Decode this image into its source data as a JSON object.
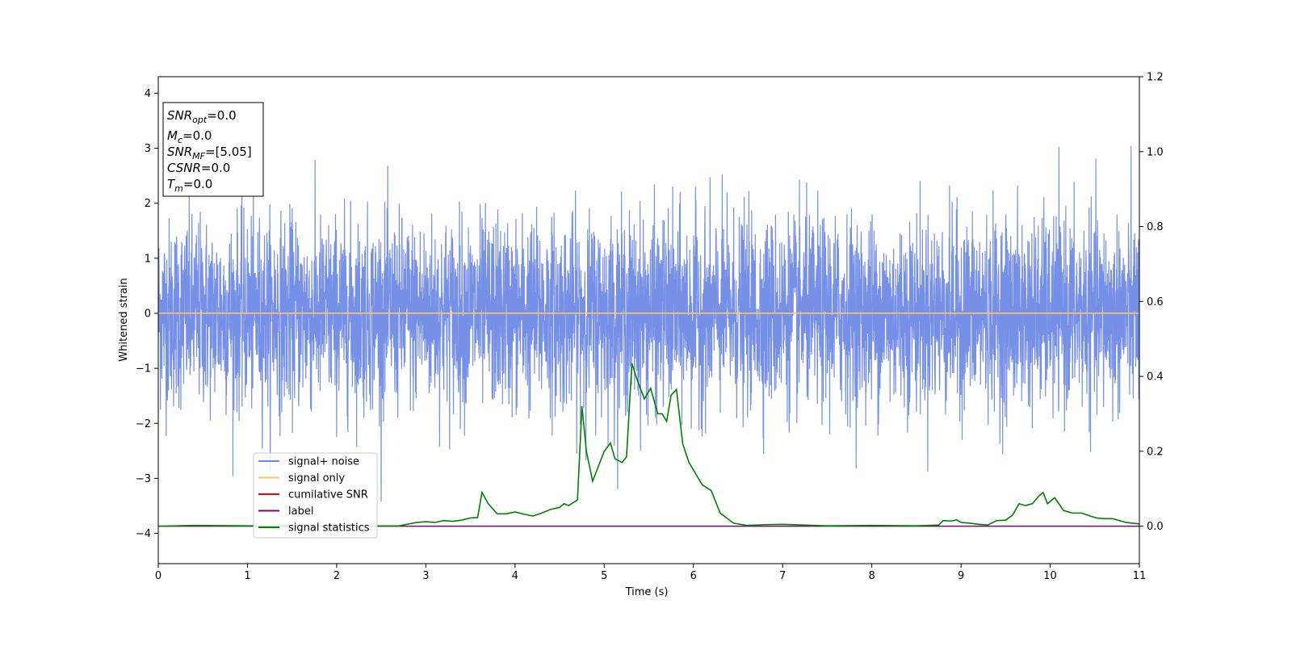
{
  "chart_data": {
    "type": "line",
    "xlabel": "Time (s)",
    "ylabel": "Whitened strain",
    "xlim": [
      0,
      11
    ],
    "ylim_left": [
      -4.55,
      4.3
    ],
    "ylim_right": [
      -0.1,
      1.2
    ],
    "x_ticks": [
      0,
      1,
      2,
      3,
      4,
      5,
      6,
      7,
      8,
      9,
      10,
      11
    ],
    "y_ticks_left": [
      -4,
      -3,
      -2,
      -1,
      0,
      1,
      2,
      3,
      4
    ],
    "y_ticks_right": [
      0.0,
      0.2,
      0.4,
      0.6,
      0.8,
      1.0,
      1.2
    ],
    "y_tick_labels_left": [
      "−4",
      "−3",
      "−2",
      "−1",
      "0",
      "1",
      "2",
      "3",
      "4"
    ],
    "y_tick_labels_right": [
      "0.0",
      "0.2",
      "0.4",
      "0.6",
      "0.8",
      "1.0",
      "1.2"
    ],
    "grid": false,
    "legend_position": "lower-left",
    "series": [
      {
        "name": "signal+ noise",
        "color": "#6f8ae6",
        "axis": "left",
        "kind": "noise",
        "noise_std": 0.85,
        "noise_clip": [
          -3.45,
          3.95
        ]
      },
      {
        "name": "signal only",
        "color": "#ffc36b",
        "axis": "left",
        "x": [
          0,
          11
        ],
        "y": [
          0,
          0
        ]
      },
      {
        "name": "cumilative SNR",
        "color": "#ff0000",
        "axis": "right",
        "x": [],
        "y": []
      },
      {
        "name": "label",
        "color": "#800080",
        "axis": "right",
        "x": [
          0,
          11
        ],
        "y": [
          0,
          0
        ]
      },
      {
        "name": "signal statistics",
        "color": "#008000",
        "axis": "right",
        "x": [
          0,
          0.4,
          1.0,
          2.0,
          2.7,
          2.9,
          3.0,
          3.1,
          3.2,
          3.3,
          3.4,
          3.5,
          3.58,
          3.63,
          3.7,
          3.8,
          3.9,
          4.0,
          4.1,
          4.2,
          4.3,
          4.4,
          4.5,
          4.55,
          4.6,
          4.7,
          4.75,
          4.8,
          4.87,
          5.0,
          5.07,
          5.12,
          5.2,
          5.25,
          5.31,
          5.37,
          5.45,
          5.52,
          5.6,
          5.65,
          5.7,
          5.75,
          5.81,
          5.88,
          5.95,
          6.0,
          6.1,
          6.2,
          6.3,
          6.45,
          6.6,
          6.8,
          7.0,
          7.5,
          8.0,
          8.5,
          8.75,
          8.8,
          8.9,
          8.95,
          9.0,
          9.1,
          9.2,
          9.3,
          9.4,
          9.5,
          9.58,
          9.65,
          9.72,
          9.8,
          9.87,
          9.92,
          9.97,
          10.05,
          10.15,
          10.25,
          10.35,
          10.45,
          10.52,
          10.6,
          10.7,
          10.85,
          11.0
        ],
        "y": [
          0.0,
          0.002,
          0.001,
          0.0,
          0.001,
          0.01,
          0.012,
          0.01,
          0.015,
          0.013,
          0.016,
          0.022,
          0.023,
          0.09,
          0.06,
          0.033,
          0.033,
          0.038,
          0.032,
          0.027,
          0.035,
          0.045,
          0.05,
          0.06,
          0.055,
          0.07,
          0.32,
          0.2,
          0.12,
          0.2,
          0.222,
          0.18,
          0.17,
          0.185,
          0.435,
          0.39,
          0.34,
          0.368,
          0.3,
          0.3,
          0.28,
          0.35,
          0.365,
          0.22,
          0.17,
          0.15,
          0.11,
          0.095,
          0.035,
          0.008,
          0.002,
          0.004,
          0.005,
          0.001,
          0.002,
          0.001,
          0.003,
          0.015,
          0.014,
          0.017,
          0.01,
          0.008,
          0.005,
          0.003,
          0.015,
          0.016,
          0.03,
          0.06,
          0.055,
          0.06,
          0.08,
          0.09,
          0.06,
          0.076,
          0.042,
          0.035,
          0.035,
          0.027,
          0.022,
          0.02,
          0.02,
          0.01,
          0.006
        ]
      }
    ],
    "annotation_box": {
      "lines": [
        {
          "base": "SNR",
          "sub": "opt",
          "value": "=0.0"
        },
        {
          "base": "M",
          "sub": "c",
          "value": "=0.0"
        },
        {
          "base": "SNR",
          "sub": "MF",
          "value": "=[5.05]"
        },
        {
          "base": "CSNR",
          "sub": "",
          "value": "=0.0"
        },
        {
          "base": "T",
          "sub": "m",
          "value": "=0.0"
        }
      ]
    }
  }
}
